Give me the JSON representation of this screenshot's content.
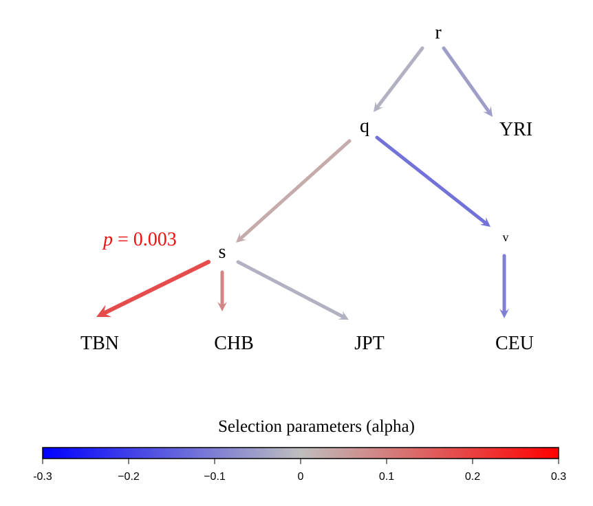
{
  "nodes": {
    "r": "r",
    "q": "q",
    "s": "s",
    "v": "v",
    "YRI": "YRI",
    "TBN": "TBN",
    "CHB": "CHB",
    "JPT": "JPT",
    "CEU": "CEU"
  },
  "edges": [
    {
      "from": "r",
      "to": "q",
      "alpha": -0.02
    },
    {
      "from": "r",
      "to": "YRI",
      "alpha": -0.05
    },
    {
      "from": "q",
      "to": "s",
      "alpha": 0.03
    },
    {
      "from": "q",
      "to": "v",
      "alpha": -0.12
    },
    {
      "from": "v",
      "to": "CEU",
      "alpha": -0.1
    },
    {
      "from": "s",
      "to": "TBN",
      "alpha": 0.18
    },
    {
      "from": "s",
      "to": "CHB",
      "alpha": 0.09
    },
    {
      "from": "s",
      "to": "JPT",
      "alpha": -0.02
    }
  ],
  "annotation": {
    "p_symbol": "p",
    "p_rest": " = 0.003"
  },
  "colorbar": {
    "title": "Selection parameters (alpha)",
    "range": [
      -0.3,
      0.3
    ],
    "colors": {
      "low": "#0000ff",
      "mid": "#bebebe",
      "high": "#ff0000"
    },
    "ticks": [
      "-0.3",
      "−0.2",
      "−0.1",
      "0",
      "0.1",
      "0.2",
      "0.3"
    ]
  }
}
